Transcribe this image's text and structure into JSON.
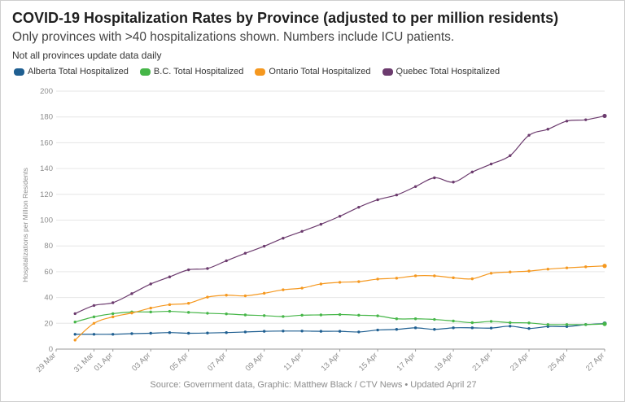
{
  "title": "COVID-19 Hospitalization Rates by Province (adjusted to per million residents)",
  "subtitle": "Only provinces with >40 hospitalizations shown. Numbers include ICU patients.",
  "note": "Not all provinces update data daily",
  "source": "Source: Government data, Graphic: Matthew Black / CTV News • Updated April 27",
  "chart_data": {
    "type": "line",
    "title": "COVID-19 Hospitalization Rates by Province (adjusted to per million residents)",
    "xlabel": "",
    "ylabel": "Hospitalizations per Million Residents",
    "ylim": [
      0,
      200
    ],
    "y_ticks": [
      0,
      20,
      40,
      60,
      80,
      100,
      120,
      140,
      160,
      180,
      200
    ],
    "x_range": [
      "2020-03-29",
      "2020-04-27"
    ],
    "x_tick_dates": [
      "2020-03-29",
      "2020-03-31",
      "2020-04-01",
      "2020-04-03",
      "2020-04-05",
      "2020-04-07",
      "2020-04-09",
      "2020-04-11",
      "2020-04-13",
      "2020-04-15",
      "2020-04-17",
      "2020-04-19",
      "2020-04-21",
      "2020-04-23",
      "2020-04-25",
      "2020-04-27"
    ],
    "x_tick_labels": [
      "29 Mar",
      "31 Mar",
      "01 Apr",
      "03 Apr",
      "05 Apr",
      "07 Apr",
      "09 Apr",
      "11 Apr",
      "13 Apr",
      "15 Apr",
      "17 Apr",
      "19 Apr",
      "21 Apr",
      "23 Apr",
      "25 Apr",
      "27 Apr"
    ],
    "grid": true,
    "legend_position": "top-left",
    "series": [
      {
        "name": "Alberta Total Hospitalized",
        "color": "#1f5f91",
        "points": [
          [
            "2020-03-30",
            11.5
          ],
          [
            "2020-03-31",
            11.5
          ],
          [
            "2020-04-01",
            11.5
          ],
          [
            "2020-04-02",
            12
          ],
          [
            "2020-04-03",
            12.3
          ],
          [
            "2020-04-04",
            12.8
          ],
          [
            "2020-04-05",
            12.3
          ],
          [
            "2020-04-06",
            12.5
          ],
          [
            "2020-04-07",
            12.8
          ],
          [
            "2020-04-08",
            13.3
          ],
          [
            "2020-04-09",
            13.8
          ],
          [
            "2020-04-10",
            14
          ],
          [
            "2020-04-11",
            14
          ],
          [
            "2020-04-12",
            13.8
          ],
          [
            "2020-04-13",
            13.8
          ],
          [
            "2020-04-14",
            13.3
          ],
          [
            "2020-04-15",
            14.8
          ],
          [
            "2020-04-16",
            15.3
          ],
          [
            "2020-04-17",
            16.5
          ],
          [
            "2020-04-18",
            15.3
          ],
          [
            "2020-04-19",
            16.5
          ],
          [
            "2020-04-20",
            16.5
          ],
          [
            "2020-04-21",
            16.3
          ],
          [
            "2020-04-22",
            17.8
          ],
          [
            "2020-04-23",
            16
          ],
          [
            "2020-04-24",
            17.5
          ],
          [
            "2020-04-25",
            17.5
          ],
          [
            "2020-04-26",
            19
          ],
          [
            "2020-04-27",
            19.8
          ]
        ]
      },
      {
        "name": "B.C. Total Hospitalized",
        "color": "#46b648",
        "points": [
          [
            "2020-03-30",
            21
          ],
          [
            "2020-03-31",
            25
          ],
          [
            "2020-04-01",
            27.5
          ],
          [
            "2020-04-02",
            28.8
          ],
          [
            "2020-04-03",
            28.8
          ],
          [
            "2020-04-04",
            29.3
          ],
          [
            "2020-04-05",
            28.5
          ],
          [
            "2020-04-06",
            27.8
          ],
          [
            "2020-04-07",
            27.3
          ],
          [
            "2020-04-08",
            26.5
          ],
          [
            "2020-04-09",
            26
          ],
          [
            "2020-04-10",
            25.3
          ],
          [
            "2020-04-11",
            26.3
          ],
          [
            "2020-04-12",
            26.5
          ],
          [
            "2020-04-13",
            26.8
          ],
          [
            "2020-04-14",
            26.3
          ],
          [
            "2020-04-15",
            25.8
          ],
          [
            "2020-04-16",
            23.5
          ],
          [
            "2020-04-17",
            23.5
          ],
          [
            "2020-04-18",
            23
          ],
          [
            "2020-04-19",
            21.8
          ],
          [
            "2020-04-20",
            20.5
          ],
          [
            "2020-04-21",
            21.5
          ],
          [
            "2020-04-22",
            20.5
          ],
          [
            "2020-04-23",
            20.3
          ],
          [
            "2020-04-24",
            19
          ],
          [
            "2020-04-25",
            19
          ],
          [
            "2020-04-26",
            19
          ],
          [
            "2020-04-27",
            19.5
          ]
        ]
      },
      {
        "name": "Ontario Total Hospitalized",
        "color": "#f5981f",
        "points": [
          [
            "2020-03-30",
            7
          ],
          [
            "2020-03-31",
            20
          ],
          [
            "2020-04-01",
            25
          ],
          [
            "2020-04-02",
            28
          ],
          [
            "2020-04-03",
            31.8
          ],
          [
            "2020-04-04",
            34.5
          ],
          [
            "2020-04-05",
            35.5
          ],
          [
            "2020-04-06",
            40.3
          ],
          [
            "2020-04-07",
            41.8
          ],
          [
            "2020-04-08",
            41.3
          ],
          [
            "2020-04-09",
            43.3
          ],
          [
            "2020-04-10",
            46
          ],
          [
            "2020-04-11",
            47.3
          ],
          [
            "2020-04-12",
            50.5
          ],
          [
            "2020-04-13",
            51.8
          ],
          [
            "2020-04-14",
            52.3
          ],
          [
            "2020-04-15",
            54.3
          ],
          [
            "2020-04-16",
            55
          ],
          [
            "2020-04-17",
            56.8
          ],
          [
            "2020-04-18",
            56.8
          ],
          [
            "2020-04-19",
            55.3
          ],
          [
            "2020-04-20",
            54.5
          ],
          [
            "2020-04-21",
            58.8
          ],
          [
            "2020-04-22",
            59.8
          ],
          [
            "2020-04-23",
            60.5
          ],
          [
            "2020-04-24",
            62
          ],
          [
            "2020-04-25",
            63
          ],
          [
            "2020-04-26",
            63.8
          ],
          [
            "2020-04-27",
            64.5
          ]
        ]
      },
      {
        "name": "Quebec Total Hospitalized",
        "color": "#6c3b6e",
        "points": [
          [
            "2020-03-30",
            27.5
          ],
          [
            "2020-03-31",
            33.8
          ],
          [
            "2020-04-01",
            36
          ],
          [
            "2020-04-02",
            43
          ],
          [
            "2020-04-03",
            50.5
          ],
          [
            "2020-04-04",
            56
          ],
          [
            "2020-04-05",
            61.5
          ],
          [
            "2020-04-06",
            62.5
          ],
          [
            "2020-04-07",
            68.5
          ],
          [
            "2020-04-08",
            74.3
          ],
          [
            "2020-04-09",
            79.8
          ],
          [
            "2020-04-10",
            86
          ],
          [
            "2020-04-11",
            91.3
          ],
          [
            "2020-04-12",
            96.8
          ],
          [
            "2020-04-13",
            103
          ],
          [
            "2020-04-14",
            110
          ],
          [
            "2020-04-15",
            115.8
          ],
          [
            "2020-04-16",
            119.5
          ],
          [
            "2020-04-17",
            126
          ],
          [
            "2020-04-18",
            132.8
          ],
          [
            "2020-04-19",
            129.5
          ],
          [
            "2020-04-20",
            137.3
          ],
          [
            "2020-04-21",
            143.5
          ],
          [
            "2020-04-22",
            150
          ],
          [
            "2020-04-23",
            165.8
          ],
          [
            "2020-04-24",
            170.5
          ],
          [
            "2020-04-25",
            176.8
          ],
          [
            "2020-04-26",
            177.8
          ],
          [
            "2020-04-27",
            180.8
          ]
        ]
      }
    ]
  }
}
